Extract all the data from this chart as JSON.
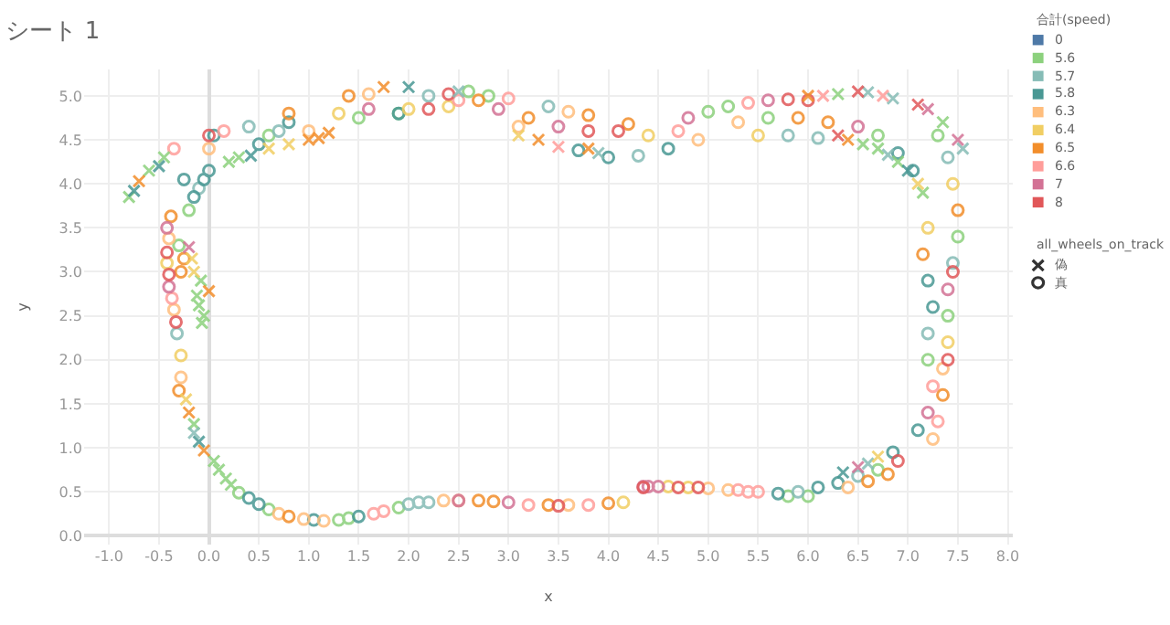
{
  "chart_data": {
    "type": "scatter",
    "title": "シート 1",
    "xlabel": "x",
    "ylabel": "y",
    "legend_title": "合計(speed)",
    "annotations": [
      "all_wheels_on_track"
    ],
    "xlim": [
      -1.25,
      8.05
    ],
    "ylim": [
      -0.1,
      5.3
    ],
    "xticks": [
      {
        "value": -1,
        "label": "-1.0"
      },
      -0.5,
      {
        "value": 0,
        "label": "0.0"
      },
      0.5,
      {
        "value": 1,
        "label": "1.0"
      },
      1.5,
      {
        "value": 2,
        "label": "2.0"
      },
      2.5,
      {
        "value": 3,
        "label": "3.0"
      },
      3.5,
      {
        "value": 4,
        "label": "4.0"
      },
      4.5,
      {
        "value": 5,
        "label": "5.0"
      },
      5.5,
      {
        "value": 6,
        "label": "6.0"
      },
      6.5,
      {
        "value": 7,
        "label": "7.0"
      },
      7.5,
      {
        "value": 8,
        "label": "8.0"
      }
    ],
    "yticks": [
      {
        "value": 0,
        "label": "0.0"
      },
      0.5,
      {
        "value": 1,
        "label": "1.0"
      },
      1.5,
      {
        "value": 2,
        "label": "2.0"
      },
      2.5,
      {
        "value": 3,
        "label": "3.0"
      },
      3.5,
      {
        "value": 4,
        "label": "4.0"
      },
      4.5,
      {
        "value": 5,
        "label": "5.0"
      }
    ],
    "grid": true,
    "legend": "right",
    "series": [
      {
        "name": "0",
        "color": "#4e79a7"
      },
      {
        "name": "5.6",
        "color": "#8cd17d",
        "marker": "circle",
        "x": [
          -0.3,
          -0.2,
          0.6,
          1.5,
          1.9,
          2.6,
          2.8,
          5.0,
          5.2,
          5.6,
          6.7,
          7.3,
          7.5,
          7.4,
          7.2,
          6.7,
          6.0,
          5.8,
          1.9,
          1.4,
          1.3,
          0.6,
          0.3
        ],
        "values": [
          3.3,
          3.7,
          4.55,
          4.75,
          4.8,
          5.05,
          5.0,
          4.82,
          4.88,
          4.75,
          4.55,
          4.55,
          3.4,
          2.5,
          2.0,
          0.75,
          0.45,
          0.45,
          0.32,
          0.2,
          0.18,
          0.3,
          0.49
        ]
      },
      {
        "name": "5.7",
        "color": "#86bcb6",
        "marker": "circle",
        "x": [
          -0.32,
          -0.1,
          0.4,
          0.7,
          2.2,
          3.4,
          4.3,
          5.8,
          6.1,
          7.4,
          7.45,
          7.2,
          6.5,
          5.9,
          2.0,
          2.1,
          2.2
        ],
        "values": [
          2.3,
          3.95,
          4.65,
          4.6,
          5.0,
          4.88,
          4.32,
          4.55,
          4.52,
          4.3,
          3.1,
          2.3,
          0.68,
          0.5,
          0.36,
          0.38,
          0.38
        ]
      },
      {
        "name": "5.8",
        "color": "#499894",
        "marker": "circle",
        "x": [
          -0.25,
          -0.15,
          -0.05,
          0.0,
          0.05,
          0.5,
          0.8,
          1.9,
          3.7,
          4.0,
          4.6,
          6.9,
          7.05,
          7.2,
          7.25,
          7.1,
          6.85,
          6.3,
          6.1,
          5.7,
          1.05,
          1.5,
          0.5,
          0.4
        ],
        "values": [
          4.05,
          3.85,
          4.05,
          4.15,
          4.55,
          4.45,
          4.7,
          4.8,
          4.38,
          4.3,
          4.4,
          4.35,
          4.15,
          2.9,
          2.6,
          1.2,
          0.95,
          0.6,
          0.55,
          0.48,
          0.18,
          0.22,
          0.36,
          0.43
        ]
      },
      {
        "name": "6.3",
        "color": "#ffbe7d",
        "marker": "circle",
        "x": [
          -0.4,
          -0.35,
          -0.28,
          0.0,
          1.0,
          1.6,
          3.1,
          3.6,
          4.9,
          5.3,
          7.35,
          7.25,
          6.4,
          5.2,
          5.0,
          3.6,
          2.5,
          2.35,
          1.15,
          0.95,
          0.7
        ],
        "values": [
          3.38,
          2.57,
          1.8,
          4.4,
          4.6,
          5.02,
          4.65,
          4.82,
          4.5,
          4.7,
          1.9,
          1.1,
          0.55,
          0.52,
          0.54,
          0.35,
          0.4,
          0.4,
          0.17,
          0.19,
          0.25
        ]
      },
      {
        "name": "6.4",
        "color": "#f1ce63",
        "marker": "circle",
        "x": [
          -0.42,
          -0.28,
          1.3,
          2.0,
          2.4,
          4.4,
          5.5,
          7.45,
          7.4,
          7.2,
          4.8,
          4.6,
          4.15
        ],
        "values": [
          3.1,
          2.05,
          4.8,
          4.85,
          4.88,
          4.55,
          4.55,
          4.0,
          2.2,
          3.5,
          0.55,
          0.56,
          0.38
        ]
      },
      {
        "name": "6.5",
        "color": "#f28e2b",
        "marker": "circle",
        "x": [
          -0.38,
          -0.3,
          -0.28,
          -0.25,
          0.8,
          1.4,
          2.7,
          3.2,
          3.8,
          4.2,
          5.9,
          6.2,
          7.5,
          7.35,
          7.15,
          6.8,
          6.6,
          4.0,
          3.4,
          2.7,
          2.85,
          0.8
        ],
        "values": [
          3.63,
          1.65,
          3.0,
          3.15,
          4.8,
          5.0,
          4.95,
          4.75,
          4.78,
          4.68,
          4.75,
          4.7,
          3.7,
          1.6,
          3.2,
          0.7,
          0.62,
          0.37,
          0.35,
          0.4,
          0.39,
          0.22
        ]
      },
      {
        "name": "6.6",
        "color": "#ff9d9a",
        "marker": "circle",
        "x": [
          -0.37,
          -0.35,
          0.15,
          2.5,
          3.0,
          4.7,
          5.4,
          7.3,
          7.25,
          5.5,
          5.3,
          5.4,
          3.8,
          3.2,
          1.75,
          1.65
        ],
        "values": [
          2.7,
          4.4,
          4.6,
          4.95,
          4.97,
          4.6,
          4.92,
          1.3,
          1.7,
          0.5,
          0.52,
          0.5,
          0.35,
          0.35,
          0.28,
          0.25
        ]
      },
      {
        "name": "7",
        "color": "#d37295",
        "marker": "circle",
        "x": [
          -0.4,
          -0.42,
          1.6,
          2.9,
          3.5,
          4.8,
          5.6,
          6.5,
          7.4,
          7.2,
          4.5,
          4.4,
          4.35,
          3.0,
          2.5
        ],
        "values": [
          2.83,
          3.5,
          4.85,
          4.85,
          4.65,
          4.75,
          4.95,
          4.65,
          2.8,
          1.4,
          0.56,
          0.56,
          0.56,
          0.38,
          0.4
        ]
      },
      {
        "name": "8",
        "color": "#e15759",
        "marker": "circle",
        "x": [
          -0.42,
          -0.4,
          -0.33,
          0.0,
          2.2,
          2.4,
          3.8,
          4.1,
          5.8,
          6.0,
          7.45,
          7.4,
          6.9,
          4.9,
          4.7,
          4.35,
          3.5
        ],
        "values": [
          3.22,
          2.97,
          2.43,
          4.55,
          4.85,
          5.02,
          4.6,
          4.6,
          4.96,
          4.95,
          3.0,
          2.0,
          0.85,
          0.55,
          0.55,
          0.55,
          0.34
        ]
      },
      {
        "color": "#8cd17d",
        "marker": "cross",
        "x": [
          -0.8,
          -0.6,
          -0.45,
          0.05,
          0.1,
          0.17,
          0.22,
          -0.15,
          -0.05,
          -0.07,
          -0.1,
          -0.12,
          -0.08,
          0.2,
          0.3,
          6.3,
          7.35,
          6.55,
          6.7,
          6.9,
          7.15
        ],
        "values": [
          3.85,
          4.15,
          4.3,
          0.85,
          0.75,
          0.65,
          0.58,
          1.27,
          2.5,
          2.42,
          2.62,
          2.73,
          2.9,
          4.25,
          4.3,
          5.02,
          4.7,
          4.45,
          4.4,
          4.25,
          3.9
        ]
      },
      {
        "color": "#499894",
        "marker": "cross",
        "x": [
          -0.75,
          -0.5,
          -0.1,
          0.42,
          2.0,
          7.0,
          6.35
        ],
        "values": [
          3.92,
          4.2,
          1.07,
          4.32,
          5.1,
          4.15,
          0.72
        ]
      },
      {
        "color": "#86bcb6",
        "marker": "cross",
        "x": [
          -0.15,
          2.5,
          3.9,
          6.6,
          6.85,
          7.55,
          6.8,
          6.6
        ],
        "values": [
          1.17,
          5.05,
          4.35,
          5.04,
          4.97,
          4.4,
          4.33,
          0.82
        ]
      },
      {
        "color": "#f28e2b",
        "marker": "cross",
        "x": [
          -0.7,
          -0.05,
          -0.2,
          0.0,
          1.0,
          1.1,
          1.2,
          1.75,
          3.3,
          3.8,
          6.0,
          6.4
        ],
        "values": [
          4.03,
          0.97,
          1.4,
          2.78,
          4.5,
          4.52,
          4.58,
          5.1,
          4.5,
          4.4,
          5.0,
          4.5
        ]
      },
      {
        "color": "#f1ce63",
        "marker": "cross",
        "x": [
          -0.23,
          -0.15,
          -0.17,
          0.6,
          0.8,
          3.1,
          7.1,
          6.7
        ],
        "values": [
          1.55,
          3.0,
          3.15,
          4.4,
          4.45,
          4.55,
          4.0,
          0.9
        ]
      },
      {
        "color": "#ff9d9a",
        "marker": "cross",
        "x": [
          3.5,
          6.15,
          6.75
        ],
        "values": [
          4.42,
          5.0,
          5.0
        ]
      },
      {
        "color": "#d37295",
        "marker": "cross",
        "x": [
          -0.2,
          7.2,
          7.5,
          6.5
        ],
        "values": [
          3.28,
          4.85,
          4.5,
          0.78
        ]
      },
      {
        "color": "#e15759",
        "marker": "cross",
        "x": [
          6.5,
          7.1,
          6.3
        ],
        "values": [
          5.05,
          4.9,
          4.55
        ]
      },
      {
        "name": "偽",
        "color": "#333333",
        "marker": "cross"
      },
      {
        "name": "真",
        "color": "#333333",
        "marker": "circle"
      }
    ]
  }
}
